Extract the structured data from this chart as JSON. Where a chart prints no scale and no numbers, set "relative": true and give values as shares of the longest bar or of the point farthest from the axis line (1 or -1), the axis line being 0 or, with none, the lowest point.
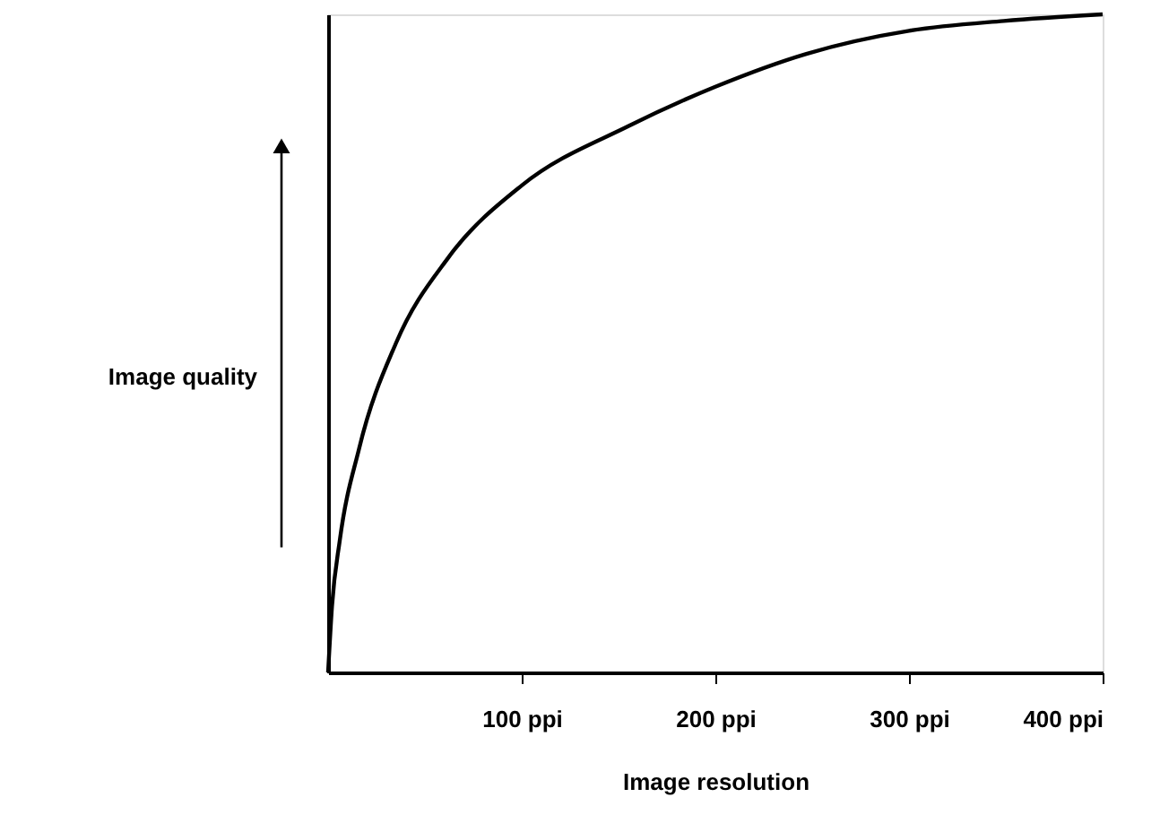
{
  "chart_data": {
    "type": "line",
    "relative": true,
    "xlabel": "Image resolution",
    "ylabel": "Image quality",
    "x": [
      0,
      2,
      6,
      16,
      35,
      62,
      100,
      155,
      200,
      247,
      300,
      349,
      400
    ],
    "series": [
      {
        "color": "#000000",
        "values": [
          0,
          0.1,
          0.2,
          0.34,
          0.5,
          0.63,
          0.74,
          0.83,
          0.89,
          0.94,
          0.975,
          0.99,
          1.0
        ]
      }
    ],
    "xlim": [
      0,
      400
    ],
    "xticks": [
      {
        "value": 100,
        "label": "100 ppi"
      },
      {
        "value": 200,
        "label": "200 ppi"
      },
      {
        "value": 300,
        "label": "300 ppi"
      },
      {
        "value": 400,
        "label": "400 ppi"
      }
    ],
    "grid": false,
    "marker": "none",
    "line_style": "solid"
  }
}
